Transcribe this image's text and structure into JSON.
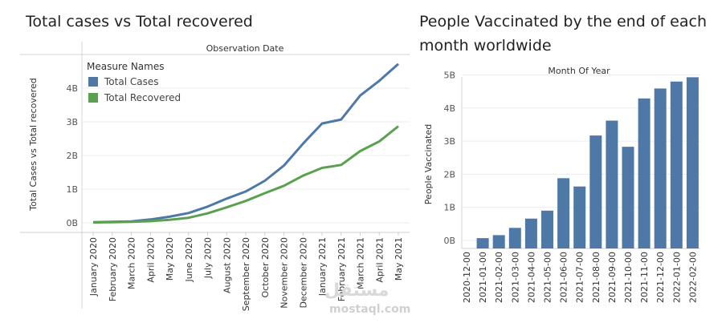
{
  "chart_data": [
    {
      "type": "line",
      "title": "Total cases vs Total recovered",
      "top_header": "Observation Date",
      "ylabel": "Total Cases vs Total recovered",
      "xlabel": "",
      "ylim": [
        0,
        5
      ],
      "yticks": [
        "0B",
        "1B",
        "2B",
        "3B",
        "4B"
      ],
      "categories": [
        "January 2020",
        "February 2020",
        "March 2020",
        "April 2020",
        "May 2020",
        "June 2020",
        "July 2020",
        "August 2020",
        "September 2020",
        "October 2020",
        "November 2020",
        "December 2020",
        "January 2021",
        "February 2021",
        "March 2021",
        "April 2021",
        "May 2021"
      ],
      "legend_title": "Measure Names",
      "legend_position": "top-left",
      "series": [
        {
          "name": "Total Cases",
          "color": "#4e79a7",
          "values": [
            0.02,
            0.03,
            0.04,
            0.1,
            0.18,
            0.29,
            0.48,
            0.72,
            0.93,
            1.25,
            1.7,
            2.35,
            2.95,
            3.07,
            3.78,
            4.22,
            4.72
          ]
        },
        {
          "name": "Total Recovered",
          "color": "#59a14f",
          "values": [
            0.01,
            0.02,
            0.03,
            0.05,
            0.09,
            0.15,
            0.28,
            0.46,
            0.65,
            0.88,
            1.1,
            1.4,
            1.63,
            1.72,
            2.13,
            2.42,
            2.87
          ]
        }
      ]
    },
    {
      "type": "bar",
      "title": "People Vaccinated by the end of each month worldwide",
      "top_header": "Month Of Year",
      "ylabel": "People Vaccinated",
      "xlabel": "",
      "ylim": [
        0,
        5
      ],
      "yticks": [
        "0B",
        "1B",
        "2B",
        "3B",
        "4B",
        "5B"
      ],
      "categories": [
        "2020-12-00",
        "2021-01-00",
        "2021-02-00",
        "2021-03-00",
        "2021-04-00",
        "2021-05-00",
        "2021-06-00",
        "2021-07-00",
        "2021-08-00",
        "2021-09-00",
        "2021-10-00",
        "2021-11-00",
        "2021-12-00",
        "2022-01-00",
        "2022-02-00"
      ],
      "values": [
        0.0,
        0.07,
        0.16,
        0.38,
        0.66,
        0.9,
        1.88,
        1.63,
        3.17,
        3.62,
        2.83,
        4.29,
        4.59,
        4.8,
        4.93
      ],
      "color": "#4e79a7"
    }
  ],
  "watermark": {
    "arabic": "مستقل",
    "latin": "mostaql.com"
  }
}
